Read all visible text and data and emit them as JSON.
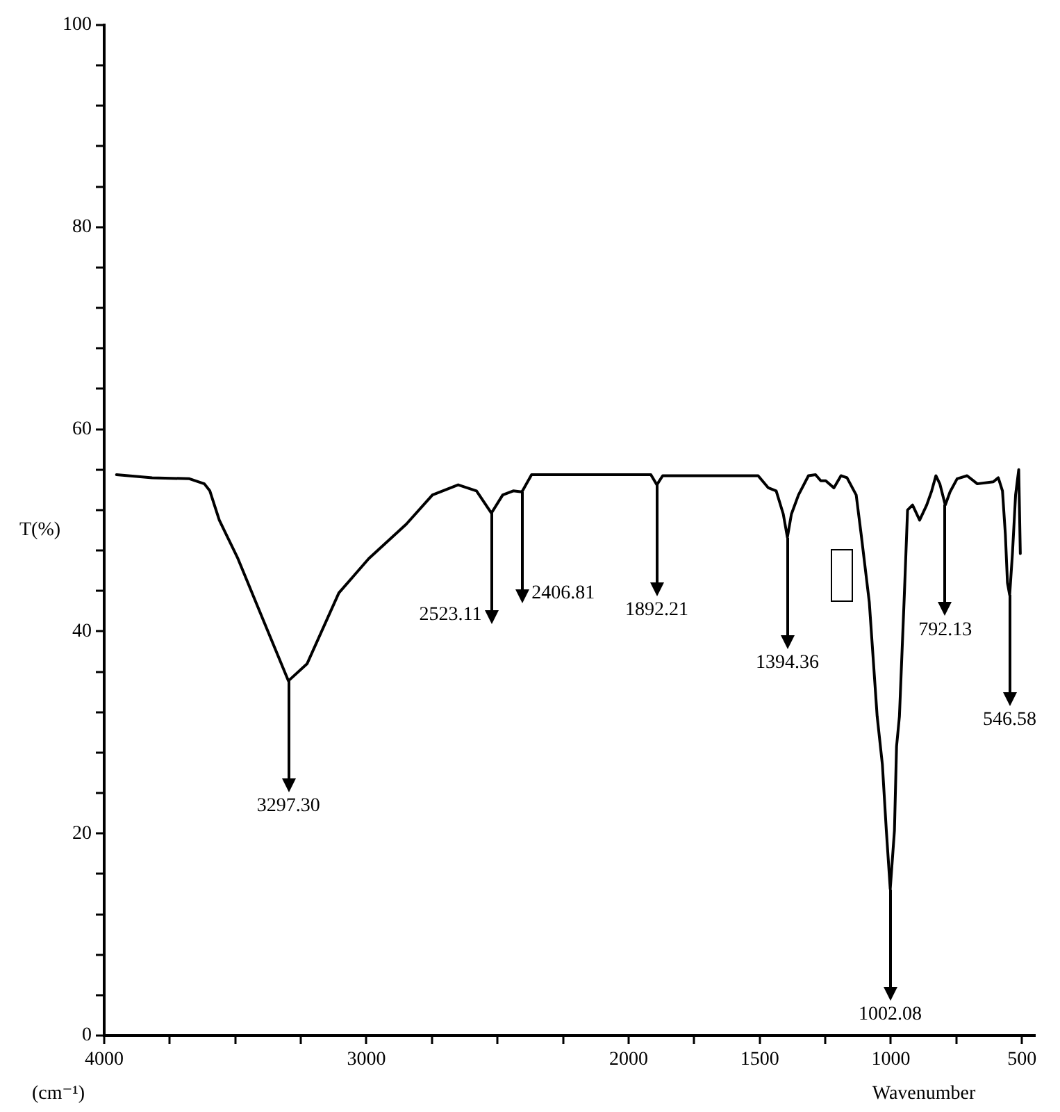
{
  "chart_data": {
    "type": "line",
    "xlabel": "Wavenumber",
    "ylabel": "T(%)",
    "color": "#000000",
    "marker": "none",
    "x": [
      3953,
      3817,
      3675,
      3618,
      3597,
      3561,
      3490,
      3390,
      3297.3,
      3226,
      3105,
      2991,
      2848,
      2748,
      2650,
      2580,
      2523.11,
      2480,
      2440,
      2406.81,
      2370,
      2157,
      1915,
      1892.21,
      1870,
      1506,
      1467,
      1437,
      1410,
      1394.36,
      1379,
      1352,
      1314,
      1287,
      1267,
      1248,
      1217,
      1190,
      1167,
      1132,
      1113,
      1082,
      1052,
      1032,
      1017,
      1002.08,
      986,
      978,
      967,
      948,
      936,
      917,
      890,
      863,
      844,
      828,
      813,
      792.13,
      774,
      747,
      709,
      670,
      609,
      590,
      574,
      563,
      555,
      546.58,
      536,
      524,
      512,
      506
    ],
    "values": [
      55.5,
      55.2,
      55.1,
      54.6,
      53.9,
      51.0,
      47.2,
      40.9,
      35.1,
      36.8,
      43.8,
      47.2,
      50.6,
      53.5,
      54.5,
      53.9,
      51.7,
      53.5,
      53.9,
      53.8,
      55.5,
      55.5,
      55.5,
      54.5,
      55.4,
      55.4,
      54.2,
      53.9,
      51.6,
      49.3,
      51.6,
      53.5,
      55.4,
      55.5,
      54.9,
      54.9,
      54.2,
      55.4,
      55.2,
      53.5,
      49.6,
      42.9,
      31.6,
      26.8,
      20.3,
      14.5,
      20.3,
      28.6,
      31.6,
      43.8,
      52.0,
      52.5,
      51.0,
      52.5,
      53.9,
      55.4,
      54.6,
      52.5,
      53.8,
      55.1,
      55.4,
      54.6,
      54.8,
      55.2,
      53.9,
      49.6,
      44.8,
      43.6,
      47.7,
      53.5,
      56.0,
      47.7
    ],
    "xlim": [
      4000,
      450
    ],
    "xticks": [
      4000,
      {
        "value": 3750,
        "label": null
      },
      {
        "value": 3500,
        "label": null
      },
      {
        "value": 3250,
        "label": null
      },
      3000,
      {
        "value": 2750,
        "label": null
      },
      {
        "value": 2500,
        "label": null
      },
      {
        "value": 2250,
        "label": null
      },
      2000,
      {
        "value": 1750,
        "label": null
      },
      1500,
      {
        "value": 1250,
        "label": null
      },
      1000,
      {
        "value": 750,
        "label": null
      },
      500
    ],
    "ylim": [
      0,
      100
    ],
    "yticks": [
      0,
      {
        "value": 4,
        "label": null
      },
      {
        "value": 8,
        "label": null
      },
      {
        "value": 12,
        "label": null
      },
      {
        "value": 16,
        "label": null
      },
      20,
      {
        "value": 24,
        "label": null
      },
      {
        "value": 28,
        "label": null
      },
      {
        "value": 32,
        "label": null
      },
      {
        "value": 36,
        "label": null
      },
      40,
      {
        "value": 44,
        "label": null
      },
      {
        "value": 48,
        "label": null
      },
      {
        "value": 52,
        "label": null
      },
      {
        "value": 56,
        "label": null
      },
      60,
      {
        "value": 64,
        "label": null
      },
      {
        "value": 68,
        "label": null
      },
      {
        "value": 72,
        "label": null
      },
      {
        "value": 76,
        "label": null
      },
      80,
      {
        "value": 84,
        "label": null
      },
      {
        "value": 88,
        "label": null
      },
      {
        "value": 92,
        "label": null
      },
      {
        "value": 96,
        "label": null
      },
      100
    ],
    "annotations": [
      "(cm⁻¹)",
      {
        "text": "3297.30",
        "x": 3297.3,
        "y": 35.1
      },
      {
        "text": "2523.11",
        "x": 2523.11,
        "y": 51.7
      },
      {
        "text": "2406.81",
        "x": 2406.81,
        "y": 53.8
      },
      {
        "text": "1892.21",
        "x": 1892.21,
        "y": 54.5
      },
      {
        "text": "1394.36",
        "x": 1394.36,
        "y": 49.3
      },
      {
        "text": "1002.08",
        "x": 1002.08,
        "y": 14.5
      },
      {
        "text": "792.13",
        "x": 792.13,
        "y": 52.5
      },
      {
        "text": "546.58",
        "x": 546.58,
        "y": 43.6
      }
    ]
  }
}
